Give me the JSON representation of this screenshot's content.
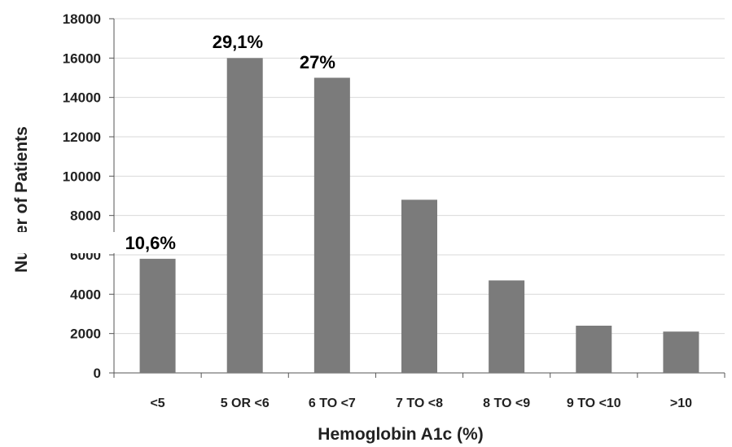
{
  "chart_data": {
    "type": "bar",
    "categories": [
      "<5",
      "5 OR <6",
      "6 TO <7",
      "7 TO <8",
      "8 TO <9",
      "9 TO <10",
      ">10"
    ],
    "values": [
      5800,
      16000,
      15000,
      8800,
      4700,
      2400,
      2100
    ],
    "data_labels": [
      "10,6%",
      "29,1%",
      "27%",
      "",
      "",
      "",
      ""
    ],
    "title": "",
    "xlabel": "Hemoglobin A1c (%)",
    "ylabel": "Nun      er of Patients",
    "ylim": [
      0,
      18000
    ],
    "yticks": [
      0,
      2000,
      4000,
      6000,
      8000,
      10000,
      12000,
      14000,
      16000,
      18000
    ],
    "grid": true,
    "legend": "none",
    "bar_color": "#7b7b7b",
    "grid_color": "#d9d9d9"
  }
}
